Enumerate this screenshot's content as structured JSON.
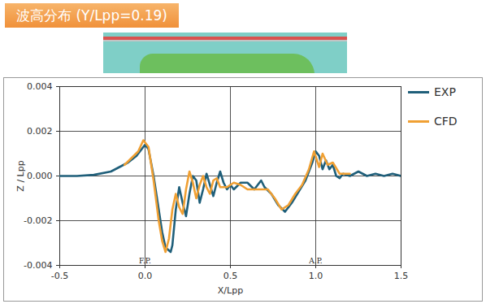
{
  "chart_data": {
    "type": "line",
    "title": "波高分布 (Y/Lpp=0.19)",
    "x_label": "X/Lpp",
    "y_label": "Z / Lpp",
    "xlim": [
      -0.5,
      1.5
    ],
    "ylim": [
      -0.004,
      0.004
    ],
    "xticks": [
      -0.5,
      {
        "value": 0,
        "label": "0.0"
      },
      0.5,
      {
        "value": 1,
        "label": "1.0"
      },
      1.5
    ],
    "yticks": [
      -0.004,
      -0.002,
      {
        "value": 0,
        "label": "0.000"
      },
      0.002,
      0.004
    ],
    "grid": true,
    "legend": "right",
    "annotations": [
      {
        "text": "F.P.",
        "x": 0,
        "y": -0.0038
      },
      {
        "text": "A.P.",
        "x": 1,
        "y": -0.0038
      }
    ],
    "series": [
      {
        "name": "EXP",
        "color": "#1f5f7a",
        "x": [
          -0.5,
          -0.4,
          -0.3,
          -0.2,
          -0.1,
          -0.05,
          0,
          0.02,
          0.05,
          0.08,
          0.1,
          0.12,
          0.15,
          0.16,
          0.18,
          0.2,
          0.22,
          0.24,
          0.26,
          0.28,
          0.3,
          0.32,
          0.34,
          0.36,
          0.38,
          0.4,
          0.42,
          0.44,
          0.46,
          0.48,
          0.5,
          0.52,
          0.56,
          0.6,
          0.64,
          0.68,
          0.7,
          0.74,
          0.78,
          0.82,
          0.86,
          0.9,
          0.94,
          0.98,
          1.0,
          1.02,
          1.04,
          1.06,
          1.08,
          1.1,
          1.12,
          1.14,
          1.16,
          1.2,
          1.25,
          1.3,
          1.35,
          1.4,
          1.45,
          1.5
        ],
        "values": [
          0,
          0,
          5e-05,
          0.0002,
          0.0006,
          0.0009,
          0.0014,
          0.0012,
          0.0,
          -0.0015,
          -0.0025,
          -0.0032,
          -0.0034,
          -0.0031,
          -0.0015,
          -0.0005,
          -0.0012,
          -0.0018,
          -0.0008,
          0.0,
          -0.0002,
          -0.0012,
          -0.0006,
          0.0001,
          -0.0004,
          -0.0009,
          -0.0003,
          0.0002,
          -0.0003,
          -0.0006,
          -0.0004,
          -0.0006,
          -0.0003,
          -0.0003,
          -0.0006,
          -0.0002,
          -0.0005,
          -0.0008,
          -0.0013,
          -0.0016,
          -0.0012,
          -0.0007,
          -0.0002,
          0.0006,
          0.0011,
          0.0009,
          0.0003,
          0.0007,
          0.0003,
          0.0005,
          0.0,
          -0.0001,
          0.0001,
          0.0,
          0.0002,
          0.0,
          0.0001,
          0.0,
          0.0001,
          0.0
        ]
      },
      {
        "name": "CFD",
        "color": "#f0a033",
        "x": [
          -0.12,
          -0.08,
          -0.04,
          -0.01,
          0.02,
          0.05,
          0.08,
          0.1,
          0.12,
          0.14,
          0.16,
          0.18,
          0.2,
          0.22,
          0.24,
          0.26,
          0.28,
          0.3,
          0.32,
          0.34,
          0.36,
          0.38,
          0.4,
          0.42,
          0.44,
          0.48,
          0.52,
          0.56,
          0.6,
          0.66,
          0.72,
          0.76,
          0.8,
          0.84,
          0.88,
          0.92,
          0.96,
          0.99,
          1.02,
          1.04,
          1.07,
          1.1,
          1.14,
          1.2
        ],
        "values": [
          0.0005,
          0.0008,
          0.0011,
          0.0016,
          0.0013,
          -0.0002,
          -0.002,
          -0.0029,
          -0.0034,
          -0.0028,
          -0.0015,
          -0.0008,
          -0.0014,
          -0.0017,
          -0.0006,
          0.0002,
          -0.0003,
          -0.001,
          -0.0004,
          0.0,
          -0.0005,
          -0.0008,
          -0.0002,
          -0.0001,
          -0.0005,
          -0.0005,
          -0.0003,
          -0.0004,
          -0.0006,
          -0.0006,
          -0.0006,
          -0.001,
          -0.0015,
          -0.0013,
          -0.0008,
          -0.0004,
          0.0003,
          0.0011,
          0.0004,
          0.001,
          0.0005,
          0.0006,
          0.0001,
          0.0001
        ]
      }
    ]
  }
}
